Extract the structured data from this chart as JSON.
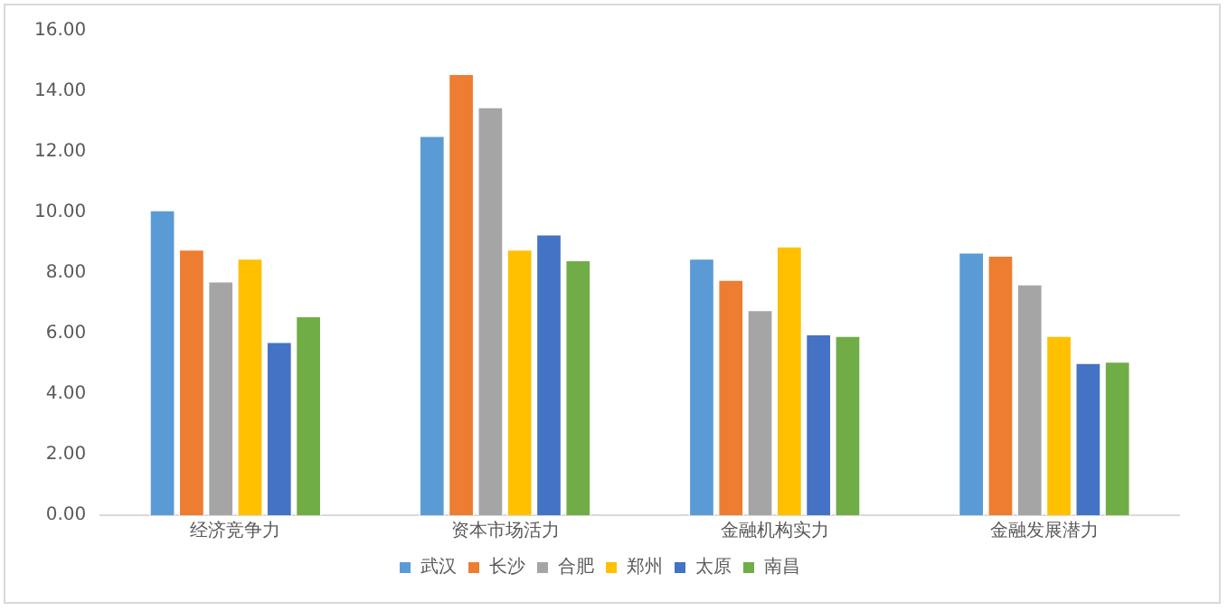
{
  "chart_data": {
    "type": "bar",
    "categories": [
      "经济竞争力",
      "资本市场活力",
      "金融机构实力",
      "金融发展潜力"
    ],
    "series": [
      {
        "name": "武汉",
        "color": "#5b9bd5",
        "values": [
          10.1,
          12.55,
          8.5,
          8.7
        ]
      },
      {
        "name": "长沙",
        "color": "#ed7d31",
        "values": [
          8.8,
          14.6,
          7.8,
          8.6
        ]
      },
      {
        "name": "合肥",
        "color": "#a5a5a5",
        "values": [
          7.75,
          13.5,
          6.8,
          7.65
        ]
      },
      {
        "name": "郑州",
        "color": "#ffc000",
        "values": [
          8.5,
          8.8,
          8.9,
          5.95
        ]
      },
      {
        "name": "太原",
        "color": "#4472c4",
        "values": [
          5.75,
          9.3,
          6.0,
          5.05
        ]
      },
      {
        "name": "南昌",
        "color": "#70ad47",
        "values": [
          6.6,
          8.45,
          5.95,
          5.1
        ]
      }
    ],
    "ylim": [
      0,
      16
    ],
    "yticks": [
      {
        "value": 0,
        "label": "0.00"
      },
      {
        "value": 2,
        "label": "2.00"
      },
      {
        "value": 4,
        "label": "4.00"
      },
      {
        "value": 6,
        "label": "6.00"
      },
      {
        "value": 8,
        "label": "8.00"
      },
      {
        "value": 10,
        "label": "10.00"
      },
      {
        "value": 12,
        "label": "12.00"
      },
      {
        "value": 14,
        "label": "14.00"
      },
      {
        "value": 16,
        "label": "16.00"
      }
    ],
    "grid": false,
    "legend": "bottom"
  }
}
